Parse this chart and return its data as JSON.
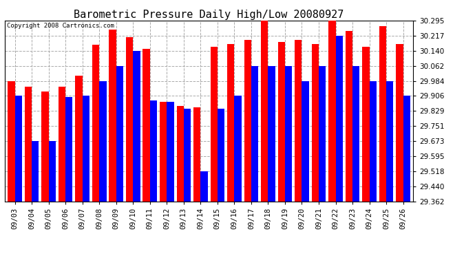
{
  "title": "Barometric Pressure Daily High/Low 20080927",
  "copyright": "Copyright 2008 Cartronics.com",
  "dates": [
    "09/03",
    "09/04",
    "09/05",
    "09/06",
    "09/07",
    "09/08",
    "09/09",
    "09/10",
    "09/11",
    "09/12",
    "09/13",
    "09/14",
    "09/15",
    "09/16",
    "09/17",
    "09/18",
    "09/19",
    "09/20",
    "09/21",
    "09/22",
    "09/23",
    "09/24",
    "09/25",
    "09/26"
  ],
  "highs": [
    29.984,
    29.955,
    29.93,
    29.955,
    30.01,
    30.17,
    30.25,
    30.21,
    30.15,
    29.875,
    29.855,
    29.848,
    30.16,
    30.175,
    30.195,
    30.31,
    30.185,
    30.195,
    30.175,
    30.31,
    30.24,
    30.16,
    30.265,
    30.175
  ],
  "lows": [
    29.906,
    29.673,
    29.673,
    29.9,
    29.906,
    29.984,
    30.062,
    30.14,
    29.884,
    29.876,
    29.84,
    29.518,
    29.84,
    29.906,
    30.062,
    30.062,
    30.062,
    29.984,
    30.062,
    30.217,
    30.062,
    29.984,
    29.984,
    29.906
  ],
  "ymin": 29.362,
  "ymax": 30.295,
  "yticks": [
    29.362,
    29.44,
    29.518,
    29.595,
    29.673,
    29.751,
    29.829,
    29.906,
    29.984,
    30.062,
    30.14,
    30.217,
    30.295
  ],
  "high_color": "#FF0000",
  "low_color": "#0000FF",
  "bg_color": "#FFFFFF",
  "plot_bg_color": "#FFFFFF",
  "grid_color": "#AAAAAA",
  "bar_width": 0.42,
  "title_fontsize": 11,
  "tick_fontsize": 7.5
}
